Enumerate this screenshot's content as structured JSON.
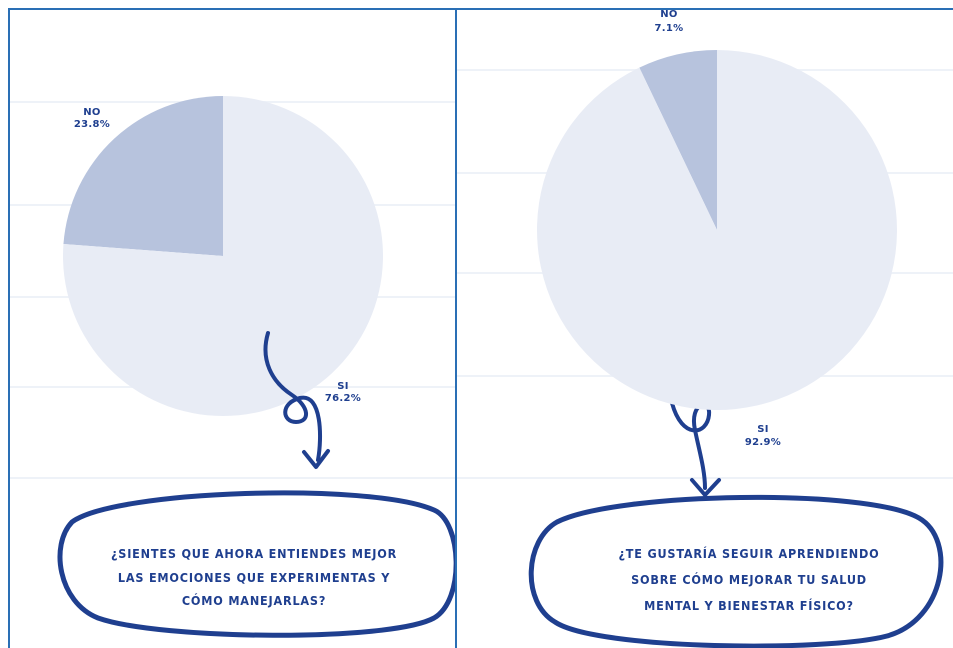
{
  "colors": {
    "slice_major": "#e8ecf5",
    "slice_minor": "#b7c3dd",
    "ink": "#1f3f8f",
    "frame": "#2a6fb5",
    "grid": "#eef2f8"
  },
  "chart_data": [
    {
      "type": "pie",
      "slices": [
        {
          "label": "NO",
          "value": 23.8,
          "value_text": "23.8%"
        },
        {
          "label": "SI",
          "value": 76.2,
          "value_text": "76.2%"
        }
      ],
      "question": [
        "¿SIENTES QUE AHORA ENTIENDES MEJOR",
        "LAS EMOCIONES QUE EXPERIMENTAS Y",
        "CÓMO MANEJARLAS?"
      ]
    },
    {
      "type": "pie",
      "slices": [
        {
          "label": "NO",
          "value": 7.1,
          "value_text": "7.1%"
        },
        {
          "label": "SI",
          "value": 92.9,
          "value_text": "92.9%"
        }
      ],
      "question": [
        "¿TE GUSTARÍA SEGUIR APRENDIENDO",
        "SOBRE CÓMO MEJORAR TU SALUD",
        "MENTAL Y BIENESTAR FÍSICO?"
      ]
    }
  ]
}
